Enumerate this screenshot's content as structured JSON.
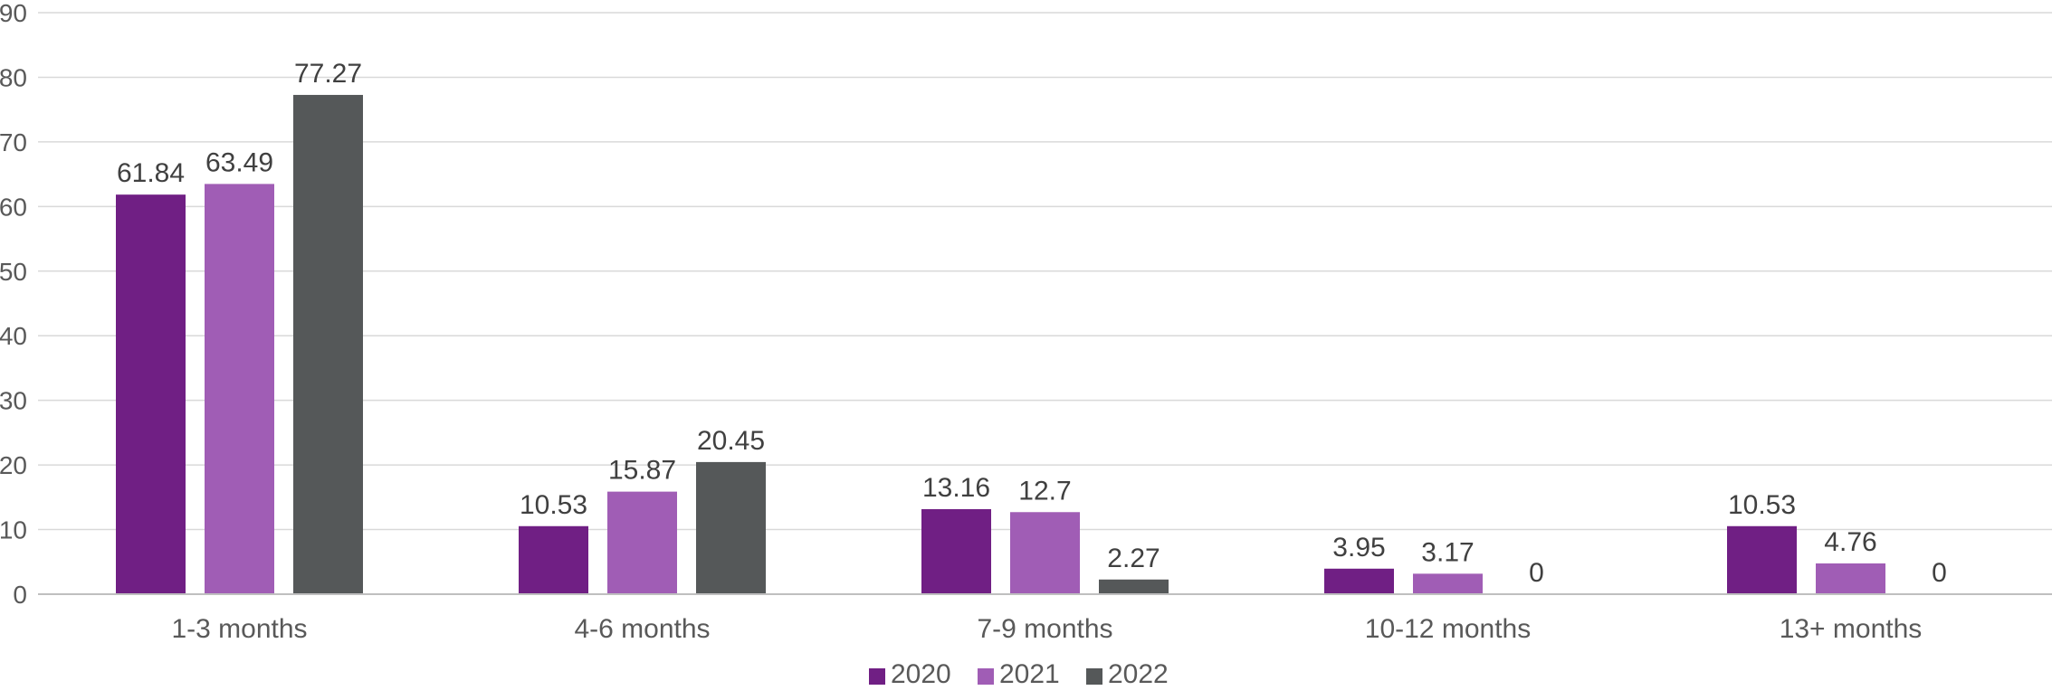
{
  "chart_data": {
    "type": "bar",
    "title": "",
    "xlabel": "",
    "ylabel": "",
    "categories": [
      "1-3 months",
      "4-6 months",
      "7-9 months",
      "10-12 months",
      "13+ months"
    ],
    "series": [
      {
        "name": "2020",
        "color": "#701f84",
        "values": [
          61.84,
          10.53,
          13.16,
          3.95,
          10.53
        ]
      },
      {
        "name": "2021",
        "color": "#a05db5",
        "values": [
          63.49,
          15.87,
          12.7,
          3.17,
          4.76
        ]
      },
      {
        "name": "2022",
        "color": "#555859",
        "values": [
          77.27,
          20.45,
          2.27,
          0,
          0
        ]
      }
    ],
    "ylim": [
      0,
      90
    ],
    "yticks": [
      0,
      10,
      20,
      30,
      40,
      50,
      60,
      70,
      80,
      90
    ],
    "grid": true,
    "legend_position": "bottom-center",
    "data_labels": true
  }
}
